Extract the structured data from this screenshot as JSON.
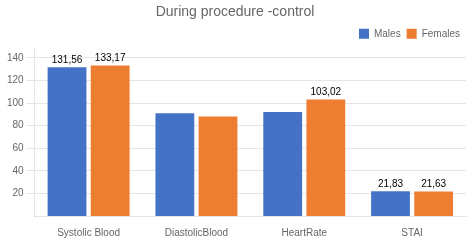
{
  "chart_data": {
    "type": "bar",
    "title": "During procedure -control",
    "categories": [
      "Systolic Blood",
      "DiastolicBlood",
      "HeartRate",
      "STAI"
    ],
    "series": [
      {
        "name": "Males",
        "color": "#4472C4",
        "values": [
          131.56,
          91.0,
          92.0,
          21.83
        ],
        "value_labels": [
          "131,56",
          null,
          null,
          "21,83"
        ]
      },
      {
        "name": "Females",
        "color": "#ED7D31",
        "values": [
          133.17,
          88.0,
          103.02,
          21.63
        ],
        "value_labels": [
          "133,17",
          null,
          "103,02",
          "21,63"
        ]
      }
    ],
    "ylim": [
      0,
      148
    ],
    "yticks": [
      20,
      40,
      60,
      80,
      100,
      120,
      140
    ],
    "grid": true,
    "legend": "upper right"
  }
}
